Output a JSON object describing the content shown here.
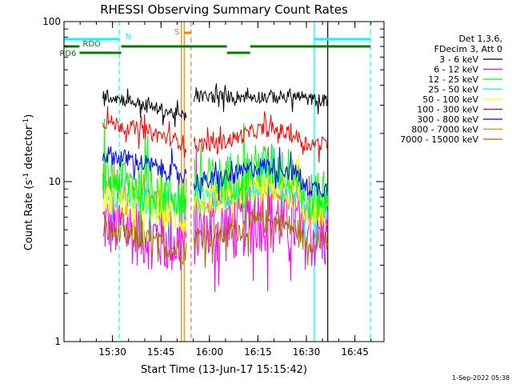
{
  "chart_data": {
    "type": "line",
    "title": "RHESSI Observing Summary Count Rates",
    "xlabel": "Start Time (13-Jun-17 15:15:42)",
    "ylabel_main": "Count Rate (s",
    "ylabel_sup": "-1",
    "ylabel_mid": " detector",
    "ylabel_sup2": "-1",
    "ylabel_end": ")",
    "x_range_minutes": [
      15.25,
      16.9
    ],
    "y_scale": "log",
    "ylim": [
      1,
      100
    ],
    "x_ticks": [
      {
        "t": 15.5,
        "label": "15:30"
      },
      {
        "t": 15.75,
        "label": "15:45"
      },
      {
        "t": 16.0,
        "label": "16:00"
      },
      {
        "t": 16.25,
        "label": "16:15"
      },
      {
        "t": 16.5,
        "label": "16:30"
      },
      {
        "t": 16.75,
        "label": "16:45"
      }
    ],
    "y_ticks": [
      {
        "v": 1,
        "label": "1"
      },
      {
        "v": 10,
        "label": "10"
      },
      {
        "v": 100,
        "label": "100"
      }
    ],
    "legend": {
      "placement": "right",
      "header": [
        "Det 1,3,6,",
        "FDecim 3, Att 0"
      ]
    },
    "series": [
      {
        "name": "3 - 6 keV",
        "color": "#000000",
        "pre": 35,
        "mid": 34,
        "post": 32,
        "noise": 0.04
      },
      {
        "name": "6 - 12 keV",
        "color": "#ff00ff",
        "pre": 5.5,
        "mid": 4.8,
        "post": 4.5,
        "noise": 0.22
      },
      {
        "name": "12 - 25 keV",
        "color": "#00ff00",
        "pre": 11,
        "mid": 10,
        "post": 8,
        "noise": 0.15
      },
      {
        "name": "25 - 50 keV",
        "color": "#00ffff",
        "pre": 9,
        "mid": 8,
        "post": 7,
        "noise": 0.1
      },
      {
        "name": "50 - 100 keV",
        "color": "#ffff00",
        "pre": 8,
        "mid": 7.5,
        "post": 6.5,
        "noise": 0.1
      },
      {
        "name": "100 - 300 keV",
        "color": "#ff0000",
        "pre": 24,
        "mid": 17,
        "post": 17,
        "noise": 0.05
      },
      {
        "name": "300 - 800 keV",
        "color": "#0000ff",
        "pre": 15,
        "mid": 10,
        "post": 9,
        "noise": 0.06
      },
      {
        "name": "800 - 7000 keV",
        "color": "#ff8000",
        "pre": 9.5,
        "mid": 7,
        "post": 6,
        "noise": 0.07
      },
      {
        "name": "7000 - 15000 keV",
        "color": "#a07000",
        "pre": 5,
        "mid": 4.5,
        "post": 4.2,
        "noise": 0.08
      }
    ],
    "data_intervals": [
      [
        15.45,
        15.88
      ],
      [
        15.92,
        16.61
      ]
    ],
    "vertical_markers": [
      {
        "t": 15.25,
        "color": "#00ffff",
        "style": "solid"
      },
      {
        "t": 15.535,
        "color": "#00ffff",
        "style": "dashed"
      },
      {
        "t": 16.54,
        "color": "#00ffff",
        "style": "solid"
      },
      {
        "t": 16.83,
        "color": "#00ffff",
        "style": "dashed"
      },
      {
        "t": 15.855,
        "color": "#ff8000",
        "style": "solid"
      },
      {
        "t": 15.87,
        "color": "#ff8000",
        "style": "solid"
      },
      {
        "t": 15.905,
        "color": "#ff8000",
        "style": "dashed"
      },
      {
        "t": 16.61,
        "color": "#000000",
        "style": "solid"
      }
    ],
    "flag_bars": [
      {
        "label": "N",
        "color": "#00ffff",
        "segments": [
          [
            15.25,
            15.535
          ],
          [
            16.54,
            16.83
          ]
        ]
      },
      {
        "label": "RDO",
        "color": "#008000",
        "segments": [
          [
            15.25,
            15.33
          ],
          [
            15.545,
            16.09
          ],
          [
            16.21,
            16.83
          ]
        ]
      },
      {
        "label": "RD6",
        "color": "#008000",
        "segments": [
          [
            15.33,
            15.545
          ],
          [
            16.09,
            16.21
          ]
        ]
      },
      {
        "label": "S",
        "color": "#ff8000",
        "segments": [
          [
            15.87,
            15.905
          ]
        ]
      }
    ]
  },
  "footer": {
    "timestamp": "1-Sep-2022 05:38"
  }
}
